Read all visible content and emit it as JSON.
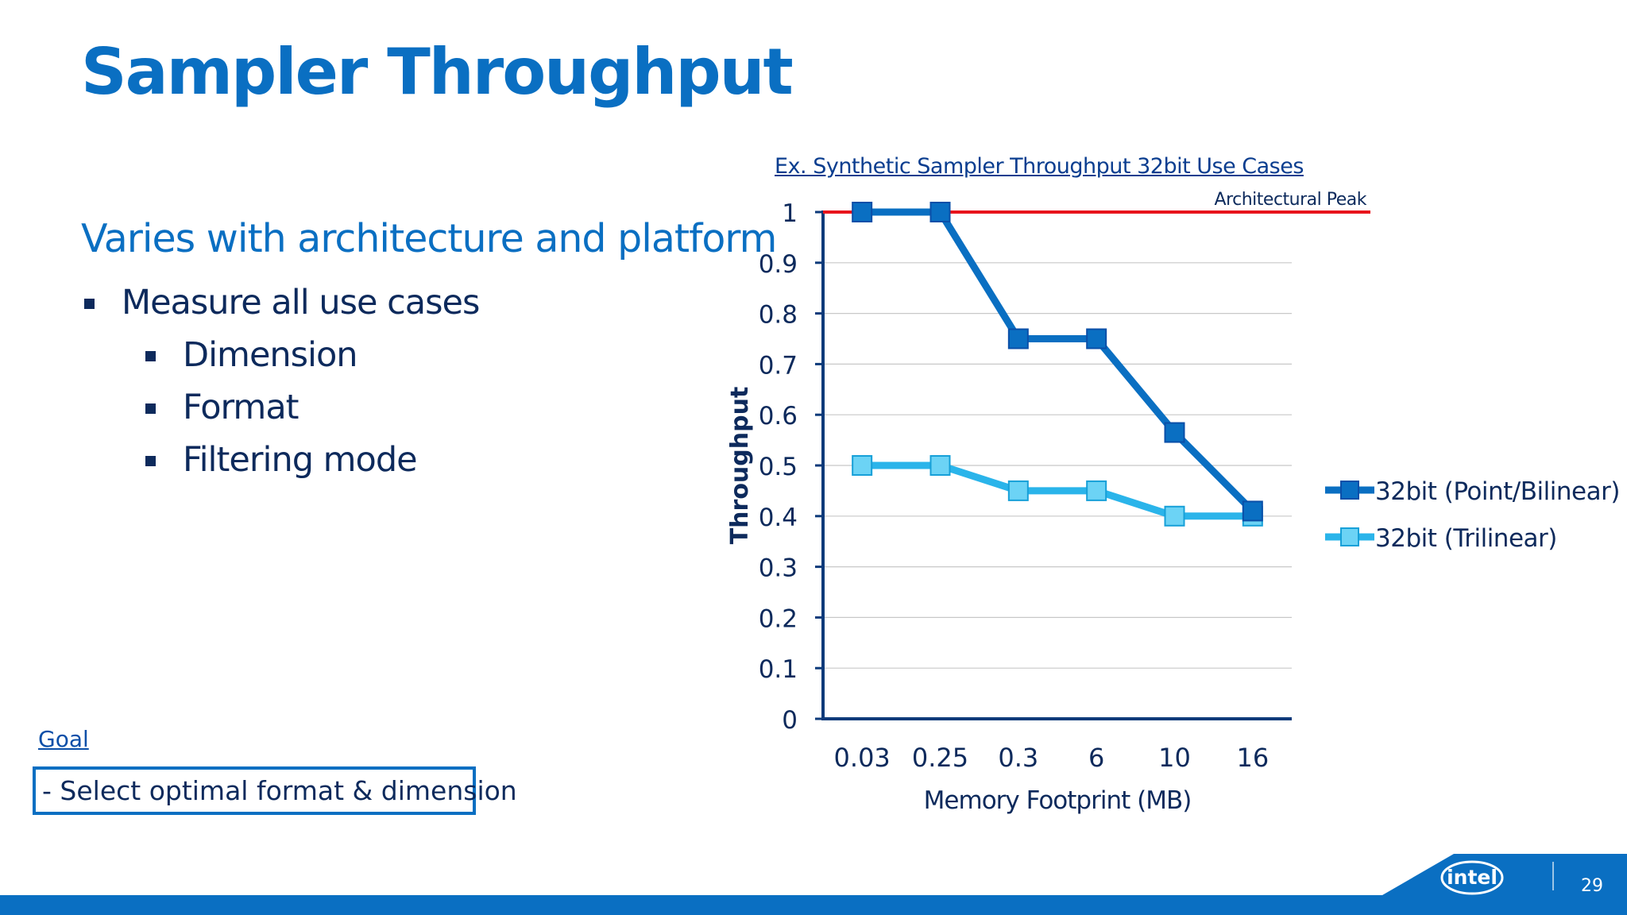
{
  "slide": {
    "title": "Sampler Throughput",
    "subtitle": "Varies with architecture and platform",
    "bullets": {
      "main": "Measure all use cases",
      "sub": [
        "Dimension",
        "Format",
        "Filtering mode"
      ]
    },
    "goal_label": "Goal",
    "goal_text": "- Select optimal format & dimension",
    "page_number": "29",
    "logo_text": "intel"
  },
  "colors": {
    "title_blue": "#0a6fc2",
    "series_dark": "#0a6fc2",
    "series_light": "#2ab4ea",
    "peak_line": "#e8141c",
    "axis": "#0d3a7a"
  },
  "chart_data": {
    "type": "line",
    "title": "Ex. Synthetic Sampler Throughput 32bit Use Cases",
    "xlabel": "Memory Footprint (MB)",
    "ylabel": "Throughput",
    "categories": [
      "0.03",
      "0.25",
      "0.3",
      "6",
      "10",
      "16"
    ],
    "ylim": [
      0,
      1
    ],
    "yticks": [
      "0",
      "0.1",
      "0.2",
      "0.3",
      "0.4",
      "0.5",
      "0.6",
      "0.7",
      "0.8",
      "0.9",
      "1"
    ],
    "grid": true,
    "legend_position": "right",
    "series": [
      {
        "name": "32bit (Point/Bilinear)",
        "values": [
          1.0,
          1.0,
          0.75,
          0.75,
          0.565,
          0.41
        ]
      },
      {
        "name": "32bit (Trilinear)",
        "values": [
          0.5,
          0.5,
          0.45,
          0.45,
          0.4,
          0.4
        ]
      }
    ],
    "reference_line": {
      "label": "Architectural Peak",
      "value": 1.0
    }
  }
}
